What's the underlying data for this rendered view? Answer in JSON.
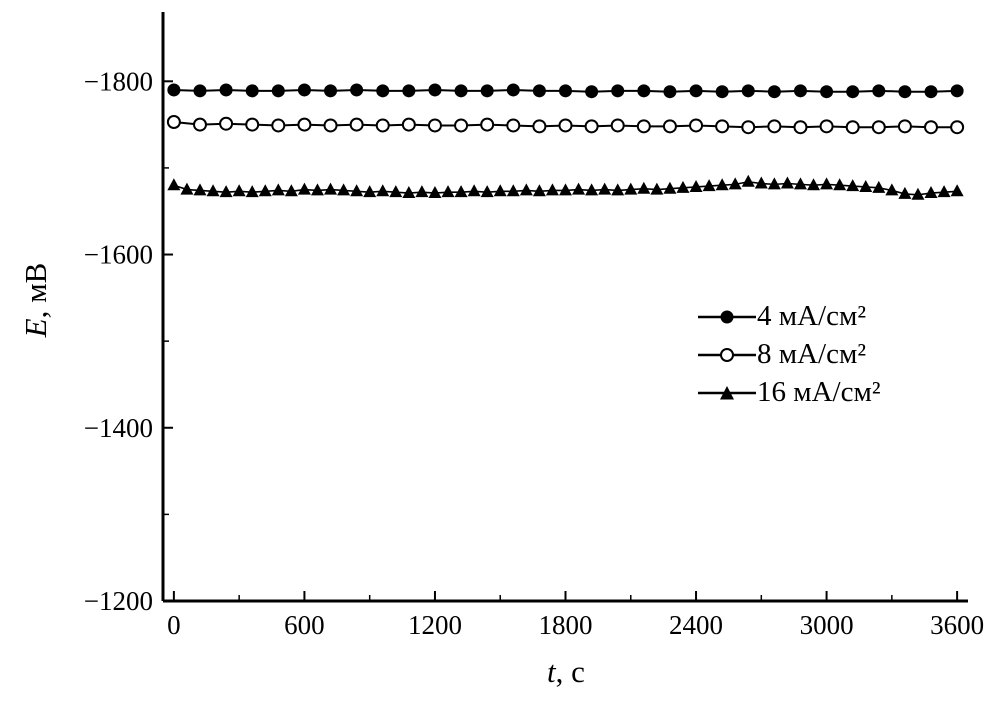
{
  "figure": {
    "background": "#ffffff",
    "axis_color": "#000000"
  },
  "axes": {
    "y_label_var": "E",
    "y_label_rest": ", мВ",
    "x_label_var": "t",
    "x_label_rest": ", с"
  },
  "chart_data": {
    "type": "line",
    "title": "",
    "xlabel": "t, с",
    "ylabel": "E, мВ",
    "xlim": [
      -50,
      3650
    ],
    "ylim": [
      -1880,
      -1200
    ],
    "y_axis_inverted": true,
    "grid": false,
    "legend_position": "right-middle",
    "x_ticks": [
      0,
      600,
      1200,
      1800,
      2400,
      3000,
      3600
    ],
    "x_tick_labels": [
      "0",
      "600",
      "1200",
      "1800",
      "2400",
      "3000",
      "3600"
    ],
    "x_minor_ticks": [
      300,
      900,
      1500,
      2100,
      2700,
      3300
    ],
    "y_ticks": [
      -1800,
      -1600,
      -1400,
      -1200
    ],
    "y_tick_labels": [
      "−1800",
      "−1600",
      "−1400",
      "−1200"
    ],
    "y_minor_ticks": [
      -1700,
      -1500,
      -1300
    ],
    "series": [
      {
        "name": "4 мА/см²",
        "marker": "circle-filled",
        "color": "#000000",
        "line_width": 2,
        "x": [
          0,
          120,
          240,
          360,
          480,
          600,
          720,
          840,
          960,
          1080,
          1200,
          1320,
          1440,
          1560,
          1680,
          1800,
          1920,
          2040,
          2160,
          2280,
          2400,
          2520,
          2640,
          2760,
          2880,
          3000,
          3120,
          3240,
          3360,
          3480,
          3600
        ],
        "y": [
          -1790,
          -1789,
          -1790,
          -1789,
          -1789,
          -1790,
          -1789,
          -1790,
          -1789,
          -1789,
          -1790,
          -1789,
          -1789,
          -1790,
          -1789,
          -1789,
          -1788,
          -1789,
          -1789,
          -1788,
          -1789,
          -1788,
          -1789,
          -1788,
          -1789,
          -1788,
          -1788,
          -1789,
          -1788,
          -1788,
          -1789
        ]
      },
      {
        "name": "8 мА/см²",
        "marker": "circle-open",
        "color": "#000000",
        "line_width": 2,
        "x": [
          0,
          120,
          240,
          360,
          480,
          600,
          720,
          840,
          960,
          1080,
          1200,
          1320,
          1440,
          1560,
          1680,
          1800,
          1920,
          2040,
          2160,
          2280,
          2400,
          2520,
          2640,
          2760,
          2880,
          3000,
          3120,
          3240,
          3360,
          3480,
          3600
        ],
        "y": [
          -1753,
          -1750,
          -1751,
          -1750,
          -1749,
          -1750,
          -1749,
          -1750,
          -1749,
          -1750,
          -1749,
          -1749,
          -1750,
          -1749,
          -1748,
          -1749,
          -1748,
          -1749,
          -1748,
          -1748,
          -1749,
          -1748,
          -1747,
          -1748,
          -1747,
          -1748,
          -1747,
          -1747,
          -1748,
          -1747,
          -1747
        ]
      },
      {
        "name": "16 мА/см²",
        "marker": "triangle-filled",
        "color": "#000000",
        "line_width": 1.6,
        "x": [
          0,
          60,
          120,
          180,
          240,
          300,
          360,
          420,
          480,
          540,
          600,
          660,
          720,
          780,
          840,
          900,
          960,
          1020,
          1080,
          1140,
          1200,
          1260,
          1320,
          1380,
          1440,
          1500,
          1560,
          1620,
          1680,
          1740,
          1800,
          1860,
          1920,
          1980,
          2040,
          2100,
          2160,
          2220,
          2280,
          2340,
          2400,
          2460,
          2520,
          2580,
          2640,
          2700,
          2760,
          2820,
          2880,
          2940,
          3000,
          3060,
          3120,
          3180,
          3240,
          3300,
          3360,
          3420,
          3480,
          3540,
          3600
        ],
        "y": [
          -1680,
          -1675,
          -1674,
          -1673,
          -1672,
          -1673,
          -1672,
          -1673,
          -1674,
          -1673,
          -1675,
          -1674,
          -1675,
          -1674,
          -1673,
          -1672,
          -1673,
          -1672,
          -1671,
          -1672,
          -1671,
          -1672,
          -1672,
          -1673,
          -1672,
          -1673,
          -1673,
          -1674,
          -1673,
          -1674,
          -1674,
          -1675,
          -1674,
          -1675,
          -1674,
          -1675,
          -1676,
          -1675,
          -1676,
          -1677,
          -1678,
          -1679,
          -1680,
          -1681,
          -1684,
          -1682,
          -1681,
          -1682,
          -1681,
          -1680,
          -1681,
          -1680,
          -1679,
          -1678,
          -1677,
          -1674,
          -1670,
          -1669,
          -1671,
          -1672,
          -1673
        ]
      }
    ]
  }
}
